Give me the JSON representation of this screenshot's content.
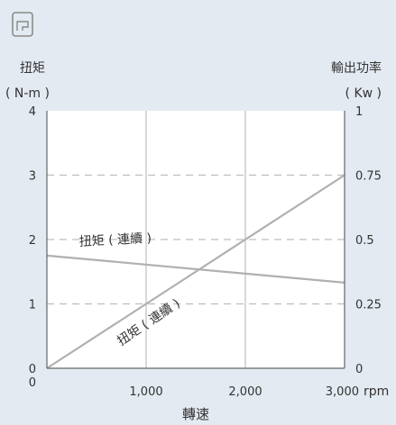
{
  "chart_data": {
    "type": "line",
    "title": "",
    "x": [
      0,
      1000,
      2000,
      3000
    ],
    "x_tick_labels": [
      "0",
      "1,000",
      "2,000",
      "3,000"
    ],
    "x_unit": "rpm",
    "xlabel": "轉速",
    "xlim": [
      0,
      3000
    ],
    "left_axis": {
      "label": "扭矩",
      "unit": "( N-m )",
      "ylim": [
        0,
        4
      ],
      "ticks": [
        0,
        1,
        2,
        3,
        4
      ],
      "tick_labels": [
        "0",
        "1",
        "2",
        "3",
        "4"
      ]
    },
    "right_axis": {
      "label": "輸出功率",
      "unit": "( Kw )",
      "ylim": [
        0,
        1
      ],
      "ticks": [
        0,
        0.25,
        0.5,
        0.75,
        1
      ],
      "tick_labels": [
        "0",
        "0.25",
        "0.5",
        "0.75",
        "1"
      ]
    },
    "grid": "vertical solid, horizontal dashed",
    "series": [
      {
        "name": "扭矩 ( 連續 )",
        "axis": "left",
        "color": "#b0b0b0",
        "points": [
          [
            0,
            1.75
          ],
          [
            3000,
            1.33
          ]
        ]
      },
      {
        "name": "扭矩 ( 連續 )",
        "axis": "right",
        "color": "#b0b0b0",
        "points": [
          [
            0,
            0
          ],
          [
            3000,
            0.75
          ]
        ]
      }
    ]
  },
  "icons": {
    "motor_icon": "motor-outline-icon"
  },
  "colors": {
    "background": "#e3eaf1",
    "plot_area": "#ffffff",
    "line": "#b0b0b0",
    "grid": "#bdbdbd",
    "text": "#333333"
  }
}
